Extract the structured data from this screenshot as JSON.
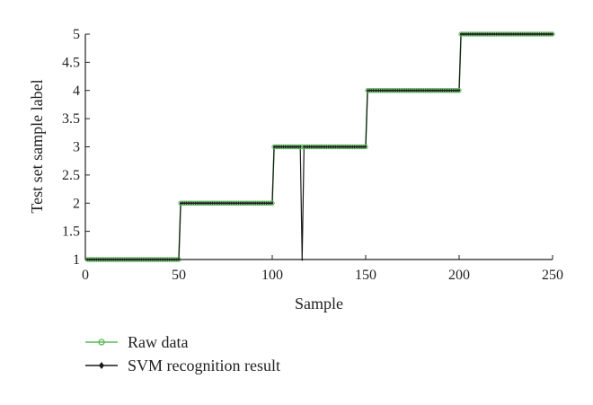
{
  "chart_data": {
    "type": "line",
    "xlabel": "Sample",
    "ylabel": "Test set sample label",
    "xlim": [
      0,
      250
    ],
    "ylim": [
      1,
      5
    ],
    "x_ticks": [
      0,
      50,
      100,
      150,
      200,
      250
    ],
    "y_ticks": [
      "1",
      "1.5",
      "2",
      "2.5",
      "3",
      "3.5",
      "4",
      "4.5",
      "5"
    ],
    "grid": false,
    "legend_position": "bottom-left",
    "series": [
      {
        "name": "Raw data",
        "color": "#5cb85c",
        "marker": "circle",
        "segments": [
          {
            "from": 1,
            "to": 50,
            "value": 1
          },
          {
            "from": 51,
            "to": 100,
            "value": 2
          },
          {
            "from": 101,
            "to": 150,
            "value": 3
          },
          {
            "from": 151,
            "to": 200,
            "value": 4
          },
          {
            "from": 201,
            "to": 250,
            "value": 5
          }
        ]
      },
      {
        "name": "SVM recognition result",
        "color": "#1a1a1a",
        "marker": "dot",
        "segments": [
          {
            "from": 1,
            "to": 50,
            "value": 1
          },
          {
            "from": 51,
            "to": 100,
            "value": 2
          },
          {
            "from": 101,
            "to": 150,
            "value": 3
          },
          {
            "from": 151,
            "to": 200,
            "value": 4
          },
          {
            "from": 201,
            "to": 250,
            "value": 5
          }
        ],
        "exceptions": [
          {
            "x": 116,
            "value": 1
          }
        ]
      }
    ]
  }
}
